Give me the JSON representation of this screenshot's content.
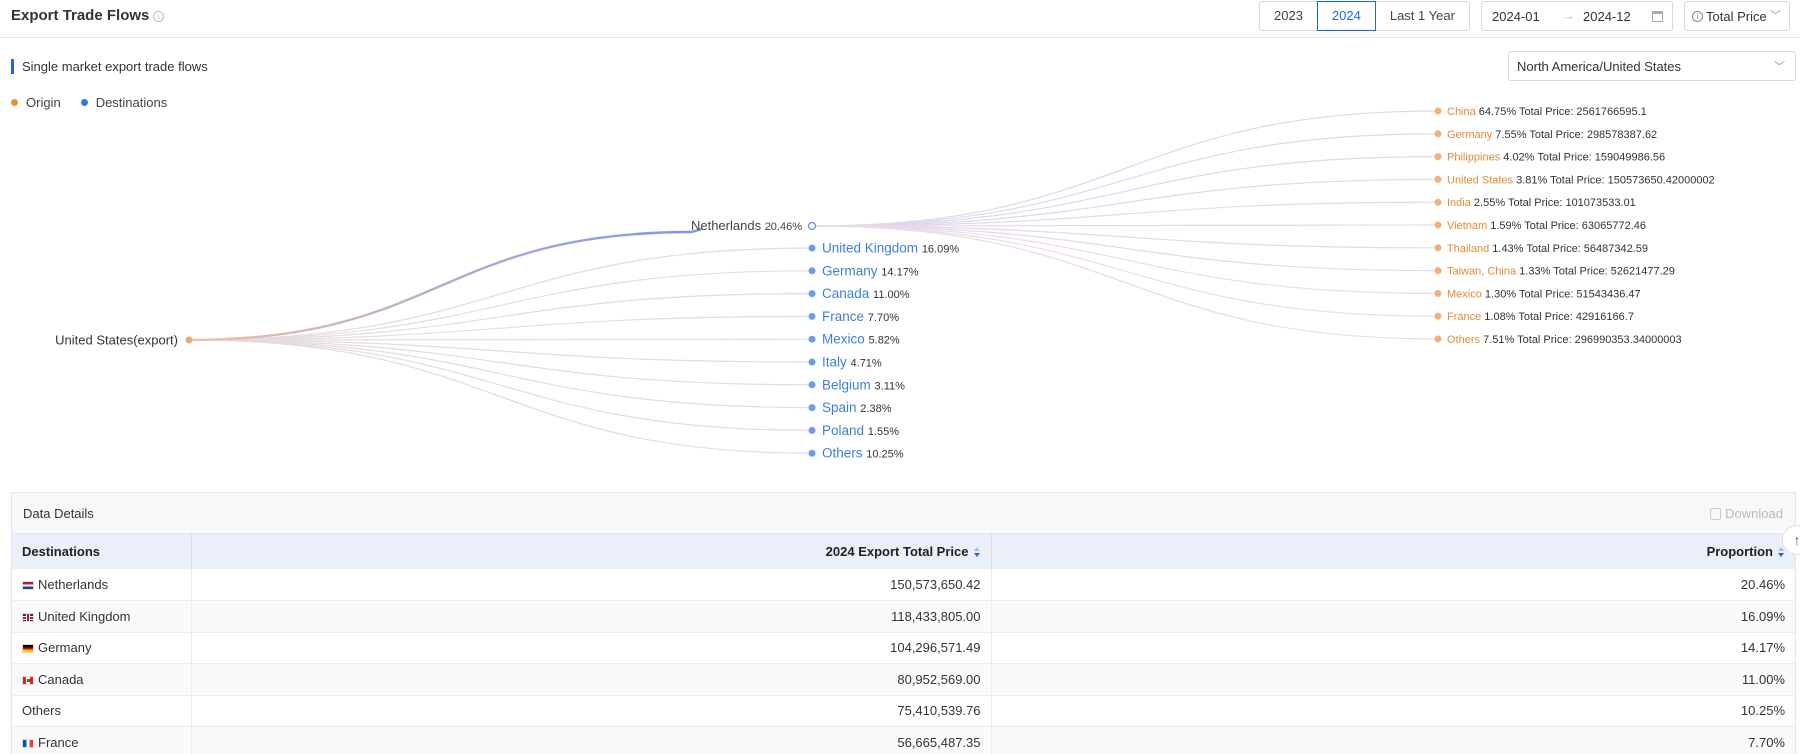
{
  "header": {
    "title": "Export Trade Flows",
    "years": [
      "2023",
      "2024",
      "Last 1 Year"
    ],
    "active_year": "2024",
    "date_from": "2024-01",
    "date_arrow": "→",
    "date_to": "2024-12",
    "metric": "Total Price"
  },
  "section": {
    "subtitle": "Single market export trade flows",
    "market": "North America/United States"
  },
  "legend": [
    {
      "label": "Origin",
      "color": "#e8913a"
    },
    {
      "label": "Destinations",
      "color": "#2f7bd8"
    }
  ],
  "flow": {
    "origin_label": "United States(export)",
    "hub": {
      "name": "Netherlands",
      "pct": "20.46%"
    },
    "destinations": [
      {
        "name": "United Kingdom",
        "pct": "16.09%"
      },
      {
        "name": "Germany",
        "pct": "14.17%"
      },
      {
        "name": "Canada",
        "pct": "11.00%"
      },
      {
        "name": "France",
        "pct": "7.70%"
      },
      {
        "name": "Mexico",
        "pct": "5.82%"
      },
      {
        "name": "Italy",
        "pct": "4.71%"
      },
      {
        "name": "Belgium",
        "pct": "3.11%"
      },
      {
        "name": "Spain",
        "pct": "2.38%"
      },
      {
        "name": "Poland",
        "pct": "1.55%"
      },
      {
        "name": "Others",
        "pct": "10.25%"
      }
    ],
    "sources": [
      {
        "name": "China",
        "pct": "64.75%",
        "price": "Total Price: 2561766595.1"
      },
      {
        "name": "Germany",
        "pct": "7.55%",
        "price": "Total Price: 298578387.62"
      },
      {
        "name": "Philippines",
        "pct": "4.02%",
        "price": "Total Price: 159049986.56"
      },
      {
        "name": "United States",
        "pct": "3.81%",
        "price": "Total Price: 150573650.42000002"
      },
      {
        "name": "India",
        "pct": "2.55%",
        "price": "Total Price: 101073533.01"
      },
      {
        "name": "Vietnam",
        "pct": "1.59%",
        "price": "Total Price: 63065772.46"
      },
      {
        "name": "Thailand",
        "pct": "1.43%",
        "price": "Total Price: 56487342.59"
      },
      {
        "name": "Taiwan, China",
        "pct": "1.33%",
        "price": "Total Price: 52621477.29"
      },
      {
        "name": "Mexico",
        "pct": "1.30%",
        "price": "Total Price: 51543436.47"
      },
      {
        "name": "France",
        "pct": "1.08%",
        "price": "Total Price: 42916166.7"
      },
      {
        "name": "Others",
        "pct": "7.51%",
        "price": "Total Price: 296990353.34000003"
      }
    ]
  },
  "details": {
    "title": "Data Details",
    "download": "Download",
    "scroll_top": "↑",
    "columns": [
      "Destinations",
      "2024 Export Total Price",
      "Proportion"
    ],
    "rows": [
      {
        "flag": "nl",
        "name": "Netherlands",
        "value": "150,573,650.42",
        "pct": "20.46%"
      },
      {
        "flag": "gb",
        "name": "United Kingdom",
        "value": "118,433,805.00",
        "pct": "16.09%"
      },
      {
        "flag": "de",
        "name": "Germany",
        "value": "104,296,571.49",
        "pct": "14.17%"
      },
      {
        "flag": "ca",
        "name": "Canada",
        "value": "80,952,569.00",
        "pct": "11.00%"
      },
      {
        "flag": "",
        "name": "Others",
        "value": "75,410,539.76",
        "pct": "10.25%"
      },
      {
        "flag": "fr",
        "name": "France",
        "value": "56,665,487.35",
        "pct": "7.70%"
      }
    ]
  }
}
